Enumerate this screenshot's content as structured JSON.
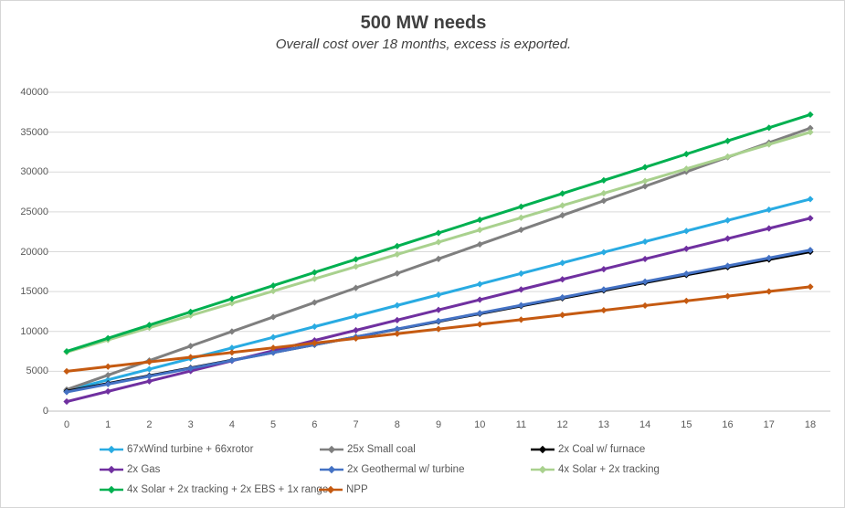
{
  "chart": {
    "title": "500 MW needs",
    "subtitle": "Overall cost over 18 months, excess is exported."
  },
  "chart_data": {
    "type": "line",
    "title": "500 MW needs",
    "subtitle": "Overall cost over 18 months, excess is exported.",
    "xlabel": "",
    "ylabel": "",
    "x": [
      0,
      1,
      2,
      3,
      4,
      5,
      6,
      7,
      8,
      9,
      10,
      11,
      12,
      13,
      14,
      15,
      16,
      17,
      18
    ],
    "ylim": [
      0,
      40000
    ],
    "ytick_step": 5000,
    "yticks": [
      0,
      5000,
      10000,
      15000,
      20000,
      25000,
      30000,
      35000,
      40000
    ],
    "grid": "horizontal",
    "legend_position": "bottom",
    "marker": "diamond",
    "series": [
      {
        "id": "wind-turbine",
        "name": "67xWind turbine + 66xrotor",
        "color": "#29ABE2",
        "values": [
          2600,
          3933,
          5267,
          6600,
          7933,
          9267,
          10600,
          11933,
          13267,
          14600,
          15933,
          17267,
          18600,
          19933,
          21267,
          22600,
          23933,
          25267,
          26600
        ]
      },
      {
        "id": "small-coal",
        "name": "25x Small coal",
        "color": "#7F7F7F",
        "values": [
          2700,
          4522,
          6344,
          8167,
          9989,
          11811,
          13633,
          15456,
          17278,
          19100,
          20922,
          22744,
          24567,
          26389,
          28211,
          30033,
          31856,
          33678,
          35500
        ]
      },
      {
        "id": "coal-furnace",
        "name": "2x Coal w/ furnace",
        "color": "#000000",
        "values": [
          2500,
          3472,
          4444,
          5417,
          6389,
          7361,
          8333,
          9306,
          10278,
          11250,
          12222,
          13194,
          14167,
          15139,
          16111,
          17083,
          18056,
          19028,
          20000
        ]
      },
      {
        "id": "gas",
        "name": "2x Gas",
        "color": "#7030A0",
        "values": [
          1200,
          2478,
          3756,
          5033,
          6311,
          7589,
          8867,
          10144,
          11422,
          12700,
          13978,
          15256,
          16533,
          17811,
          19089,
          20367,
          21644,
          22922,
          24200
        ]
      },
      {
        "id": "geothermal",
        "name": "2x Geothermal w/ turbine",
        "color": "#4472C4",
        "values": [
          2400,
          3389,
          4378,
          5367,
          6356,
          7344,
          8333,
          9322,
          10311,
          11300,
          12289,
          13278,
          14267,
          15256,
          16244,
          17233,
          18222,
          19211,
          20200
        ]
      },
      {
        "id": "solar-tracking",
        "name": "4x Solar + 2x tracking",
        "color": "#A9D18E",
        "values": [
          7400,
          8933,
          10467,
          12000,
          13533,
          15067,
          16600,
          18133,
          19667,
          21200,
          22733,
          24267,
          25800,
          27333,
          28867,
          30400,
          31933,
          33467,
          35000
        ]
      },
      {
        "id": "solar-ebs-range",
        "name": "4x Solar + 2x tracking + 2x EBS + 1x range",
        "color": "#00B050",
        "values": [
          7500,
          9150,
          10800,
          12450,
          14100,
          15750,
          17400,
          19050,
          20700,
          22350,
          24000,
          25650,
          27300,
          28950,
          30600,
          32250,
          33900,
          35550,
          37200
        ]
      },
      {
        "id": "npp",
        "name": "NPP",
        "color": "#C55A11",
        "values": [
          5000,
          5589,
          6178,
          6767,
          7356,
          7944,
          8533,
          9122,
          9711,
          10300,
          10889,
          11478,
          12067,
          12656,
          13244,
          13833,
          14422,
          15011,
          15600
        ]
      }
    ],
    "colors": {
      "gridline": "#D9D9D9",
      "axis_line": "#BFBFBF",
      "tick_text": "#595959",
      "title_text": "#404040",
      "background": "#FFFFFF"
    }
  }
}
